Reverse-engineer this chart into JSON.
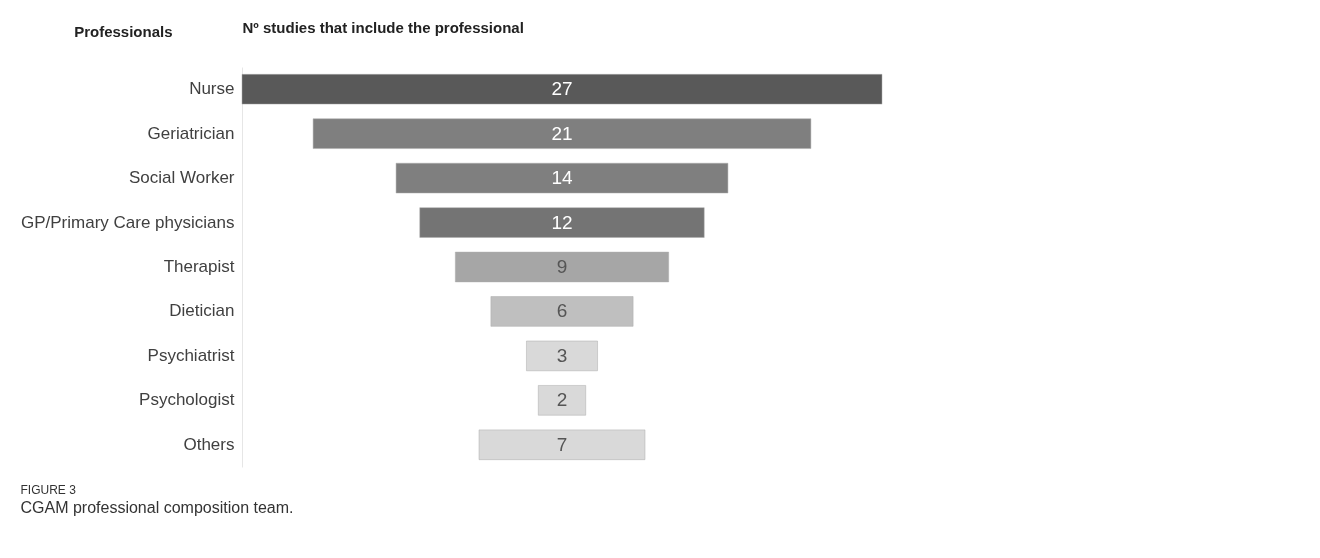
{
  "chart_data": {
    "type": "other",
    "ylabel": "Professionals",
    "xlabel": "Nº studies that include the professional",
    "categories": [
      "Nurse",
      "Geriatrician",
      "Social Worker",
      "GP/Primary Care physicians",
      "Therapist",
      "Dietician",
      "Psychiatrist",
      "Psychologist",
      "Others"
    ],
    "values": [
      27,
      21,
      14,
      12,
      9,
      6,
      3,
      2,
      7
    ],
    "colors": [
      "#595959",
      "#7f7f7f",
      "#7f7f7f",
      "#747474",
      "#a6a6a6",
      "#bfbfbf",
      "#d9d9d9",
      "#d9d9d9",
      "#d9d9d9"
    ],
    "data_labels": true,
    "annotations": [
      "FIGURE 3",
      "CGAM professional composition team."
    ]
  }
}
